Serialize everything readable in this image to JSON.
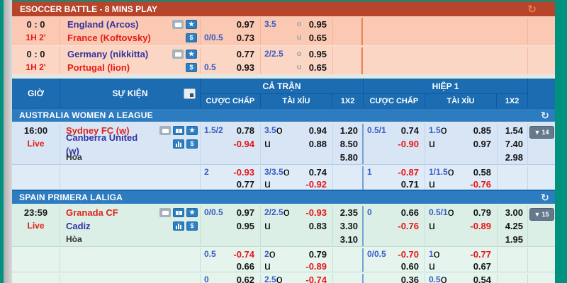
{
  "colors": {
    "page_bg": "#00927e",
    "esoccer_header_bg": "#b7452c",
    "table_header_bg": "#1c6cb2",
    "league_bar_bg": "#2e7cc0",
    "negative_odds": "#e81515",
    "line_blue": "#3a5cc5",
    "home_red": "#e02318",
    "away_navy": "#33339e"
  },
  "icons": {
    "refresh": "↻",
    "star": "★",
    "money": "$",
    "collapse_arrow": "▼"
  },
  "labels": {
    "over": "o",
    "under": "u"
  },
  "esoccer": {
    "title": "ESOCCER BATTLE - 8 MINS PLAY",
    "matches": [
      {
        "score": "0 : 0",
        "time": "1H 2'",
        "home": "England (Arcos)",
        "away": "France (Koftovsky)",
        "hdp_line": "0/0.5",
        "hdp_home": "0.97",
        "hdp_away": "0.73",
        "ou_line": "3.5",
        "over": "0.95",
        "under": "0.65"
      },
      {
        "score": "0 : 0",
        "time": "1H 2'",
        "home": "Germany (nikkitta)",
        "away": "Portugal (lion)",
        "hdp_line": "0.5",
        "hdp_home": "0.77",
        "hdp_away": "0.93",
        "ou_line": "2/2.5",
        "over": "0.95",
        "under": "0.65"
      }
    ]
  },
  "table_headers": {
    "time": "GIỜ",
    "event": "SỰ KIỆN",
    "full_time": "CẢ TRẬN",
    "first_half": "HIỆP 1",
    "handicap": "CƯỢC CHẤP",
    "over_under": "TÀI XỈU",
    "one_x_two": "1X2"
  },
  "sections": [
    {
      "league": "AUSTRALIA WOMEN A LEAGUE",
      "time": "16:00",
      "status": "Live",
      "home": "Sydney FC (w)",
      "away": "Canberra United (w)",
      "draw": "Hòa",
      "collapse_count": "14",
      "ft": {
        "hdp_line": "1.5/2",
        "hdp_home": "0.78",
        "hdp_away": "-0.94",
        "ou_line": "3.5",
        "over": "0.94",
        "under": "0.88",
        "x_home": "1.20",
        "x_away": "8.50",
        "x_draw": "5.80"
      },
      "h1": {
        "hdp_line": "0.5/1",
        "hdp_home": "0.74",
        "hdp_away": "-0.90",
        "ou_line": "1.5",
        "over": "0.85",
        "under": "0.97",
        "x_home": "1.54",
        "x_away": "7.40",
        "x_draw": "2.98"
      },
      "ft_more": {
        "hdp_line": "2",
        "hdp_home": "-0.93",
        "hdp_away": "0.77",
        "ou_line": "3/3.5",
        "over": "0.74",
        "under": "-0.92"
      },
      "h1_more": {
        "hdp_line": "1",
        "hdp_home": "-0.87",
        "hdp_away": "0.71",
        "ou_line": "1/1.5",
        "over": "0.58",
        "under": "-0.76"
      }
    },
    {
      "league": "SPAIN PRIMERA LALIGA",
      "time": "23:59",
      "status": "Live",
      "home": "Granada CF",
      "away": "Cadiz",
      "draw": "Hòa",
      "collapse_count": "15",
      "ft": {
        "hdp_line": "0/0.5",
        "hdp_home": "0.97",
        "hdp_away": "0.95",
        "ou_line": "2/2.5",
        "over": "-0.93",
        "under": "0.83",
        "x_home": "2.35",
        "x_away": "3.30",
        "x_draw": "3.10"
      },
      "h1": {
        "hdp_line": "0",
        "hdp_home": "0.66",
        "hdp_away": "-0.76",
        "ou_line": "0.5/1",
        "over": "0.79",
        "under": "-0.89",
        "x_home": "3.00",
        "x_away": "4.25",
        "x_draw": "1.95"
      },
      "ft_more": {
        "hdp_line": "0.5",
        "hdp_home": "-0.74",
        "hdp_away": "0.66",
        "ou_line": "2",
        "over": "0.79",
        "under": "-0.89"
      },
      "h1_more": {
        "hdp_line": "0/0.5",
        "hdp_home": "-0.70",
        "hdp_away": "0.60",
        "ou_line": "1",
        "over": "-0.77",
        "under": "0.67"
      },
      "ft_more2": {
        "hdp_line": "0",
        "hdp_home": "0.62",
        "ou_line": "2.5",
        "over": "-0.74"
      },
      "h1_more2": {
        "hdp_line": "",
        "hdp_home": "0.36",
        "ou_line": "0.5",
        "over": "0.54"
      }
    }
  ]
}
